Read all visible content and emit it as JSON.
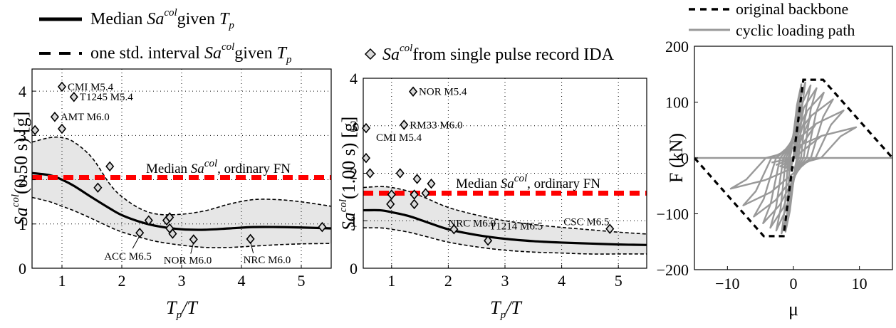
{
  "chart_data": [
    {
      "type": "line",
      "ylabel_main": "Sa",
      "ylabel_sup": "col",
      "ylabel_rest": "(0.50 s) [g]",
      "xlabel_main": "T",
      "xlabel_sub": "p",
      "xlabel_rest": "/T",
      "xlim": [
        0.5,
        5.5
      ],
      "ylim": [
        0,
        4.5
      ],
      "xticks": [
        "1",
        "2",
        "3",
        "4",
        "5"
      ],
      "yticks": [
        "0",
        "1",
        "2",
        "3",
        "4"
      ],
      "grid": true,
      "series": [
        {
          "name": "median",
          "x": [
            0.5,
            0.8,
            1.0,
            1.2,
            1.5,
            1.8,
            2.0,
            2.3,
            2.6,
            3.0,
            3.4,
            3.8,
            4.2,
            4.6,
            5.0,
            5.5
          ],
          "y": [
            2.15,
            2.1,
            2.0,
            1.86,
            1.6,
            1.35,
            1.2,
            1.05,
            0.95,
            0.88,
            0.87,
            0.9,
            0.93,
            0.93,
            0.92,
            0.9
          ]
        },
        {
          "name": "upper",
          "x": [
            0.5,
            0.8,
            1.0,
            1.2,
            1.5,
            1.8,
            2.0,
            2.3,
            2.6,
            3.0,
            3.4,
            3.8,
            4.2,
            4.6,
            5.0,
            5.5
          ],
          "y": [
            2.85,
            2.95,
            2.95,
            2.85,
            2.5,
            1.9,
            1.62,
            1.35,
            1.22,
            1.22,
            1.3,
            1.45,
            1.55,
            1.55,
            1.5,
            1.4
          ]
        },
        {
          "name": "lower",
          "x": [
            0.5,
            0.8,
            1.0,
            1.2,
            1.5,
            1.8,
            2.0,
            2.3,
            2.6,
            3.0,
            3.4,
            3.8,
            4.2,
            4.6,
            5.0,
            5.5
          ],
          "y": [
            1.6,
            1.5,
            1.4,
            1.3,
            1.12,
            0.93,
            0.82,
            0.7,
            0.6,
            0.52,
            0.47,
            0.47,
            0.5,
            0.53,
            0.55,
            0.56
          ]
        }
      ],
      "points": [
        [
          0.55,
          3.12
        ],
        [
          0.88,
          3.42
        ],
        [
          1.0,
          4.1
        ],
        [
          1.2,
          3.87
        ],
        [
          1.0,
          3.15
        ],
        [
          1.6,
          1.82
        ],
        [
          1.8,
          2.3
        ],
        [
          2.3,
          0.8
        ],
        [
          2.45,
          1.08
        ],
        [
          2.75,
          1.08
        ],
        [
          2.8,
          0.9
        ],
        [
          2.85,
          0.78
        ],
        [
          2.8,
          1.15
        ],
        [
          3.2,
          0.65
        ],
        [
          4.15,
          0.66
        ],
        [
          5.35,
          0.93
        ]
      ],
      "median_line_value": 2.05,
      "median_line_label": ", ordinary FN",
      "median_line_prefix": "Median",
      "annotations": [
        {
          "text": "CMI M5.4",
          "x": 1.0,
          "y": 4.1
        },
        {
          "text": "T1245 M5.4",
          "x": 1.2,
          "y": 3.87
        },
        {
          "text": "AMT M6.0",
          "x": 0.88,
          "y": 3.42
        },
        {
          "text": "ACC M6.5",
          "x": 2.3,
          "y": 0.8
        },
        {
          "text": "NOR M6.0",
          "x": 3.2,
          "y": 0.65
        },
        {
          "text": "NRC M6.0",
          "x": 4.15,
          "y": 0.66
        }
      ]
    },
    {
      "type": "line",
      "ylabel_main": "Sa",
      "ylabel_sup": "col",
      "ylabel_rest": "(1.00 s) [g]",
      "xlabel_main": "T",
      "xlabel_sub": "p",
      "xlabel_rest": "/T",
      "xlim": [
        0.5,
        5.5
      ],
      "ylim": [
        0,
        4
      ],
      "xticks": [
        "1",
        "2",
        "3",
        "4",
        "5"
      ],
      "yticks": [
        "0",
        "1",
        "2",
        "3",
        "4"
      ],
      "grid": true,
      "series": [
        {
          "name": "median",
          "x": [
            0.5,
            0.8,
            1.0,
            1.3,
            1.6,
            2.0,
            2.5,
            3.0,
            3.5,
            4.0,
            4.5,
            5.0,
            5.5
          ],
          "y": [
            1.22,
            1.22,
            1.18,
            1.1,
            0.98,
            0.82,
            0.7,
            0.62,
            0.57,
            0.54,
            0.52,
            0.5,
            0.49
          ]
        },
        {
          "name": "upper",
          "x": [
            0.5,
            0.8,
            1.0,
            1.3,
            1.6,
            2.0,
            2.5,
            3.0,
            3.5,
            4.0,
            4.5,
            5.0,
            5.5
          ],
          "y": [
            1.7,
            1.72,
            1.7,
            1.62,
            1.48,
            1.28,
            1.12,
            1.0,
            0.92,
            0.86,
            0.81,
            0.76,
            0.72
          ]
        },
        {
          "name": "lower",
          "x": [
            0.5,
            0.8,
            1.0,
            1.3,
            1.6,
            2.0,
            2.5,
            3.0,
            3.5,
            4.0,
            4.5,
            5.0,
            5.5
          ],
          "y": [
            0.85,
            0.85,
            0.82,
            0.76,
            0.67,
            0.55,
            0.45,
            0.38,
            0.34,
            0.32,
            0.3,
            0.3,
            0.3
          ]
        }
      ],
      "points": [
        [
          0.55,
          2.95
        ],
        [
          0.55,
          2.32
        ],
        [
          0.62,
          2.0
        ],
        [
          1.0,
          1.55
        ],
        [
          1.15,
          2.0
        ],
        [
          0.98,
          1.35
        ],
        [
          1.22,
          3.02
        ],
        [
          1.38,
          3.72
        ],
        [
          1.4,
          1.55
        ],
        [
          1.4,
          1.35
        ],
        [
          1.45,
          1.88
        ],
        [
          1.6,
          1.58
        ],
        [
          1.7,
          1.78
        ],
        [
          2.1,
          0.82
        ],
        [
          2.7,
          0.58
        ],
        [
          4.85,
          0.83
        ]
      ],
      "median_line_value": 1.58,
      "median_line_label": ", ordinary FN",
      "median_line_prefix": "Median",
      "annotations": [
        {
          "text": "NOR M5.4",
          "x": 1.38,
          "y": 3.72
        },
        {
          "text": "RM33 M6.0",
          "x": 1.22,
          "y": 3.02
        },
        {
          "text": "CMI M5.4",
          "x": 0.55,
          "y": 2.95
        },
        {
          "text": "NRC M6.0",
          "x": 2.1,
          "y": 0.82
        },
        {
          "text": "T1214 M6.5",
          "x": 2.7,
          "y": 0.58
        },
        {
          "text": "CSC M6.5",
          "x": 4.85,
          "y": 0.83
        }
      ]
    },
    {
      "type": "line",
      "ylabel": "F (kN)",
      "xlabel": "μ",
      "xlim": [
        -15,
        15
      ],
      "ylim": [
        -200,
        200
      ],
      "xticks": [
        "−10",
        "0",
        "10"
      ],
      "xtick_values": [
        -10,
        0,
        10
      ],
      "yticks": [
        "−200",
        "−100",
        "0",
        "100",
        "200"
      ],
      "ytick_values": [
        -200,
        -100,
        0,
        100,
        200
      ],
      "grid": false,
      "series": [
        {
          "name": "original backbone",
          "x": [
            -15,
            -4.5,
            -1.5,
            0,
            1.5,
            4.5,
            15
          ],
          "y": [
            0,
            -140,
            -140,
            0,
            140,
            140,
            0
          ]
        },
        {
          "name": "cyclic loading path"
        }
      ],
      "cycle_amplitudes": [
        1.2,
        1.8,
        2.6,
        3.5,
        4.6,
        6.0,
        7.6,
        9.5
      ],
      "cycle_peaks": [
        132,
        135,
        130,
        125,
        117,
        105,
        85,
        55
      ]
    }
  ],
  "legend_left": [
    {
      "label_prefix": "Median",
      "label_sup": "col",
      "label_mid": "given",
      "label_main_sub": "p"
    },
    {
      "label_prefix": "one std. interval",
      "label_sup": "col",
      "label_mid": "given",
      "label_main_sub": "p"
    }
  ],
  "legend_center": {
    "label_sup": "col",
    "label_rest": "from single pulse record IDA"
  },
  "legend_right": [
    {
      "label": "original backbone"
    },
    {
      "label": "cyclic loading path"
    }
  ],
  "colors": {
    "band": "#e6e6e6",
    "median_line": "#ff0000",
    "cyclic": "#999999",
    "black": "#000000"
  }
}
